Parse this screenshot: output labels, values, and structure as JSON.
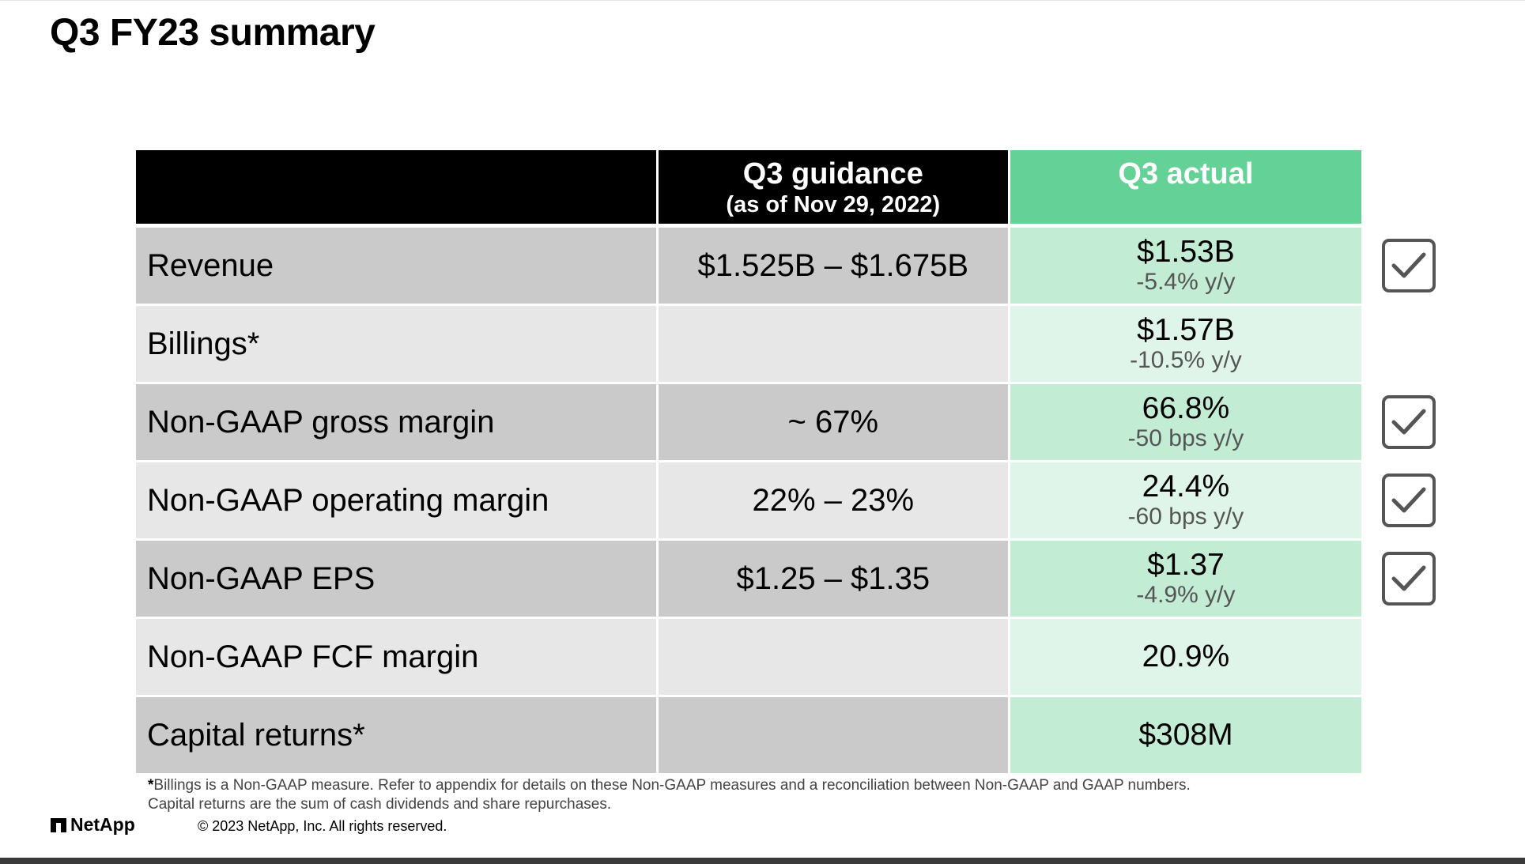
{
  "title": "Q3 FY23 summary",
  "table": {
    "header": {
      "guidance": "Q3 guidance",
      "guidance_sub": "(as of Nov 29, 2022)",
      "actual": "Q3 actual"
    },
    "rows": [
      {
        "metric": "Revenue",
        "guidance": "$1.525B – $1.675B",
        "actual": "$1.53B",
        "actual_change": "-5.4% y/y",
        "checked": true
      },
      {
        "metric": "Billings*",
        "guidance": "",
        "actual": "$1.57B",
        "actual_change": "-10.5% y/y",
        "checked": false
      },
      {
        "metric": "Non-GAAP gross margin",
        "guidance": "~ 67%",
        "actual": "66.8%",
        "actual_change": "-50 bps y/y",
        "checked": true
      },
      {
        "metric": "Non-GAAP operating margin",
        "guidance": "22% – 23%",
        "actual": "24.4%",
        "actual_change": "-60 bps y/y",
        "checked": true
      },
      {
        "metric": "Non-GAAP EPS",
        "guidance": "$1.25 – $1.35",
        "actual": "$1.37",
        "actual_change": "-4.9% y/y",
        "checked": true
      },
      {
        "metric": "Non-GAAP FCF margin",
        "guidance": "",
        "actual": "20.9%",
        "actual_change": "",
        "checked": false
      },
      {
        "metric": "Capital returns*",
        "guidance": "",
        "actual": "$308M",
        "actual_change": "",
        "checked": false
      }
    ]
  },
  "footnotes": {
    "asterisk": "*",
    "line1": "Billings is a Non-GAAP measure. Refer to appendix for details on these Non-GAAP measures and a reconciliation between Non-GAAP and GAAP numbers.",
    "line2": "Capital returns are the sum of cash dividends and share repurchases."
  },
  "logo_text": "NetApp",
  "copyright": "© 2023 NetApp, Inc. All rights reserved.",
  "icons": {
    "check": "checkmark-icon",
    "logo": "netapp-logo-icon"
  },
  "colors": {
    "header_dark": "#000000",
    "header_green": "#64d196",
    "row_dark": "#cacaca",
    "row_light": "#e7e7e7",
    "green_dark": "#c3ecd5",
    "green_light": "#e0f5e9"
  }
}
